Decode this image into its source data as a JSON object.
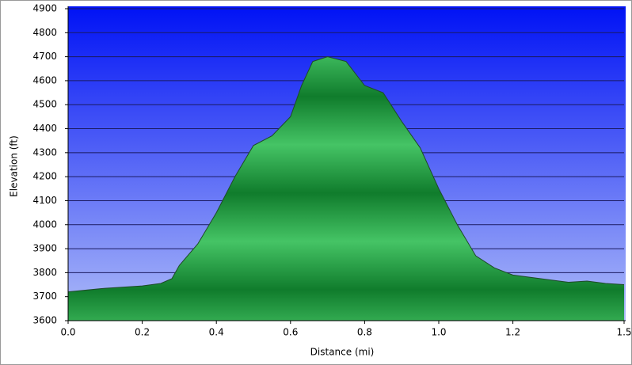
{
  "chart_data": {
    "type": "area",
    "x_label": "Distance    (mi)",
    "y_label": "Elevation (ft)",
    "x": [
      0,
      0.1,
      0.2,
      0.25,
      0.28,
      0.3,
      0.35,
      0.4,
      0.45,
      0.5,
      0.55,
      0.6,
      0.63,
      0.66,
      0.7,
      0.75,
      0.8,
      0.85,
      0.9,
      0.95,
      1.0,
      1.05,
      1.1,
      1.15,
      1.2,
      1.3,
      1.35,
      1.4,
      1.45,
      1.5
    ],
    "values": [
      3720,
      3735,
      3745,
      3755,
      3775,
      3830,
      3920,
      4050,
      4200,
      4330,
      4370,
      4450,
      4580,
      4680,
      4700,
      4680,
      4580,
      4550,
      4430,
      4320,
      4150,
      4000,
      3870,
      3820,
      3790,
      3770,
      3760,
      3765,
      3755,
      3750
    ],
    "color": "#22a045",
    "xlim": [
      0,
      1.5
    ],
    "ylim": [
      3600,
      4900
    ],
    "xticks": [
      {
        "value": 0,
        "label": "0.0"
      },
      0.2,
      0.4,
      0.6,
      0.8,
      {
        "value": 1,
        "label": "1.0"
      },
      1.2,
      1.5
    ],
    "yticks": [
      3600,
      3700,
      3800,
      3900,
      4000,
      4100,
      4200,
      4300,
      4400,
      4500,
      4600,
      4700,
      4800,
      4900
    ],
    "grid": true
  }
}
